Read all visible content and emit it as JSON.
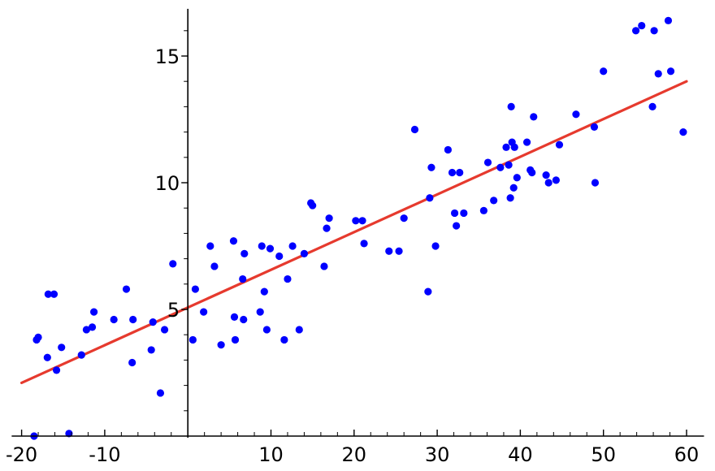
{
  "chart_data": {
    "type": "scatter",
    "title": "",
    "xlabel": "",
    "ylabel": "",
    "xlim": [
      -21,
      62
    ],
    "ylim": [
      0,
      16.8
    ],
    "xticks": [
      -20,
      -10,
      10,
      20,
      30,
      40,
      50,
      60
    ],
    "yticks": [
      5,
      10,
      15
    ],
    "x_tick_labels": [
      "-20",
      "-10",
      "10",
      "20",
      "30",
      "40",
      "50",
      "60"
    ],
    "y_tick_labels": [
      "5",
      "10",
      "15"
    ],
    "axis_crossing": {
      "x": 0,
      "y": 0
    },
    "grid": false,
    "colors": {
      "points": "#0000ff",
      "fit_line": "#e63a2e",
      "axis": "#000000"
    },
    "series": [
      {
        "type": "scatter",
        "x": [
          -18.5,
          -18.2,
          -18.0,
          -16.9,
          -16.8,
          -16.1,
          -15.8,
          -15.2,
          -14.3,
          -12.8,
          -12.2,
          -11.5,
          -11.3,
          -8.9,
          -7.4,
          -6.7,
          -6.6,
          -4.4,
          -4.2,
          -3.3,
          -2.8,
          -1.8,
          0.6,
          0.9,
          1.9,
          2.7,
          3.2,
          4.0,
          5.5,
          5.6,
          5.7,
          6.6,
          6.7,
          6.8,
          8.7,
          8.9,
          9.2,
          9.5,
          9.9,
          11.0,
          11.6,
          12.0,
          12.6,
          13.4,
          14.0,
          14.8,
          15.0,
          16.4,
          16.7,
          17.0,
          20.2,
          21.0,
          21.2,
          24.2,
          25.4,
          26.0,
          27.3,
          28.9,
          29.1,
          29.3,
          29.8,
          31.3,
          31.8,
          32.1,
          32.3,
          32.7,
          33.2,
          35.6,
          36.1,
          36.8,
          37.6,
          38.3,
          38.6,
          38.8,
          38.9,
          39.0,
          39.2,
          39.3,
          39.6,
          40.8,
          41.2,
          41.4,
          41.6,
          43.1,
          43.4,
          44.3,
          44.7,
          46.7,
          48.9,
          49.0,
          50.0,
          53.9,
          54.6,
          55.9,
          56.1,
          56.6,
          57.8,
          58.1,
          59.6
        ],
        "y": [
          0.0,
          3.8,
          3.9,
          3.1,
          5.6,
          5.6,
          2.6,
          3.5,
          0.1,
          3.2,
          4.2,
          4.3,
          4.9,
          4.6,
          5.8,
          2.9,
          4.6,
          3.4,
          4.5,
          1.7,
          4.2,
          6.8,
          3.8,
          5.8,
          4.9,
          7.5,
          6.7,
          3.6,
          7.7,
          4.7,
          3.8,
          6.2,
          4.6,
          7.2,
          4.9,
          7.5,
          5.7,
          4.2,
          7.4,
          7.1,
          3.8,
          6.2,
          7.5,
          4.2,
          7.2,
          9.2,
          9.1,
          6.7,
          8.2,
          8.6,
          8.5,
          8.5,
          7.6,
          7.3,
          7.3,
          8.6,
          12.1,
          5.7,
          9.4,
          10.6,
          7.5,
          11.3,
          10.4,
          8.8,
          8.3,
          10.4,
          8.8,
          8.9,
          10.8,
          9.3,
          10.6,
          11.4,
          10.7,
          9.4,
          13.0,
          11.6,
          9.8,
          11.4,
          10.2,
          11.6,
          10.5,
          10.4,
          12.6,
          10.3,
          10.0,
          10.1,
          11.5,
          12.7,
          12.2,
          10.0,
          14.4,
          16.0,
          16.2,
          13.0,
          16.0,
          14.3,
          16.4,
          14.4,
          12.0
        ]
      },
      {
        "type": "line",
        "x": [
          -20,
          60
        ],
        "y": [
          2.1,
          14.0
        ]
      }
    ]
  }
}
